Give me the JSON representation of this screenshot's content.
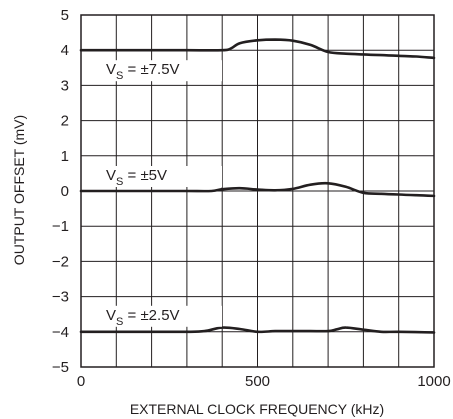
{
  "chart_data": {
    "type": "line",
    "title": "",
    "xlabel": "EXTERNAL CLOCK FREQUENCY (kHz)",
    "ylabel": "OUTPUT OFFSET (mV)",
    "xlim": [
      0,
      1000
    ],
    "ylim": [
      -5,
      5
    ],
    "x_ticks": [
      0,
      500,
      1000
    ],
    "x_tick_labels": [
      "0",
      "500",
      "1000"
    ],
    "x_grid_step": 100,
    "y_ticks": [
      -5,
      -4,
      -3,
      -2,
      -1,
      0,
      1,
      2,
      3,
      4,
      5
    ],
    "y_tick_labels": [
      "−5",
      "−4",
      "−3",
      "−2",
      "−1",
      "0",
      "1",
      "2",
      "3",
      "4",
      "5"
    ],
    "grid": true,
    "line_color": "#231f20",
    "series": [
      {
        "label_main": "V",
        "label_sub": "S",
        "label_rest": " = ±7.5V",
        "x": [
          0,
          100,
          200,
          300,
          400,
          425,
          450,
          500,
          550,
          600,
          650,
          700,
          750,
          800,
          850,
          900,
          950,
          1000
        ],
        "y": [
          4.0,
          4.0,
          4.0,
          4.0,
          4.0,
          4.05,
          4.2,
          4.28,
          4.3,
          4.27,
          4.15,
          3.95,
          3.9,
          3.88,
          3.86,
          3.84,
          3.82,
          3.78
        ]
      },
      {
        "label_main": "V",
        "label_sub": "S",
        "label_rest": " = ±5V",
        "x": [
          0,
          100,
          200,
          300,
          370,
          400,
          450,
          500,
          550,
          600,
          650,
          700,
          750,
          800,
          850,
          900,
          950,
          1000
        ],
        "y": [
          0.0,
          0.0,
          0.0,
          0.0,
          0.0,
          0.05,
          0.08,
          0.04,
          0.02,
          0.06,
          0.18,
          0.22,
          0.12,
          -0.05,
          -0.08,
          -0.1,
          -0.12,
          -0.14
        ]
      },
      {
        "label_main": "V",
        "label_sub": "S",
        "label_rest": " = ±2.5V",
        "x": [
          0,
          100,
          200,
          300,
          350,
          400,
          450,
          500,
          550,
          600,
          650,
          700,
          725,
          750,
          800,
          850,
          900,
          1000
        ],
        "y": [
          -4.0,
          -4.0,
          -4.0,
          -4.0,
          -3.98,
          -3.88,
          -3.92,
          -4.0,
          -3.98,
          -3.98,
          -3.98,
          -3.98,
          -3.93,
          -3.88,
          -3.94,
          -4.0,
          -4.0,
          -4.02
        ]
      }
    ]
  }
}
